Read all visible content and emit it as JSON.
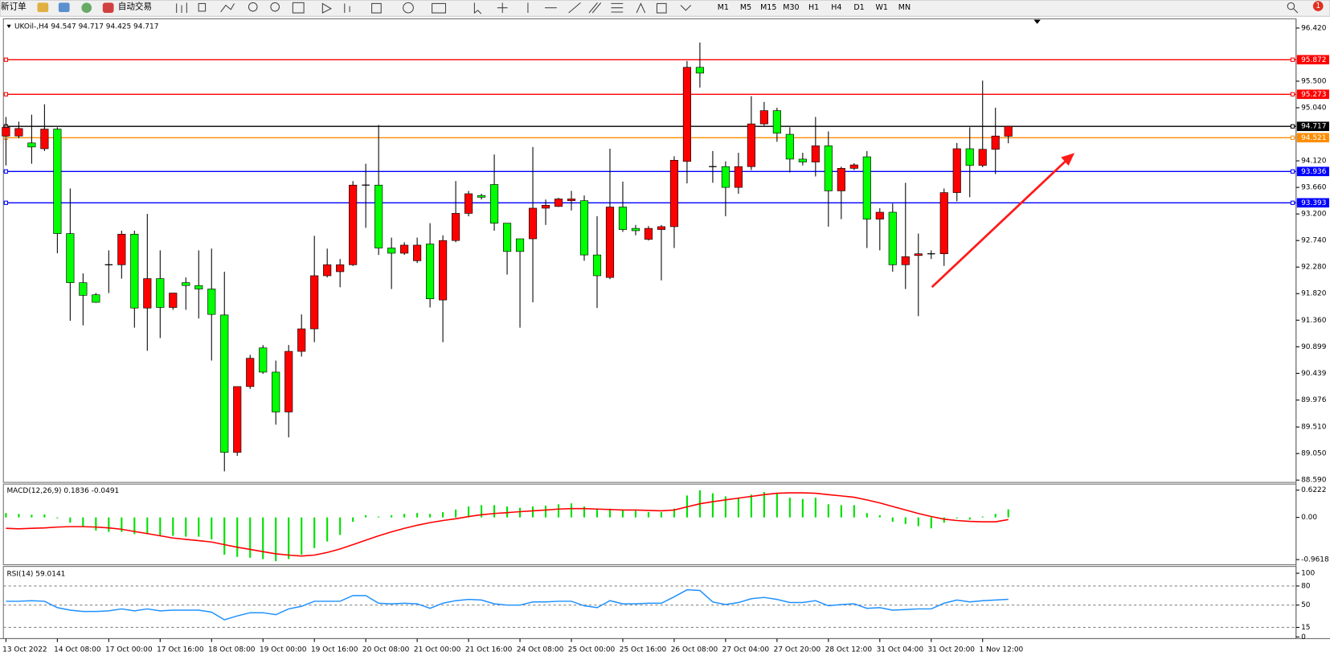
{
  "toolbar": {
    "new_order": "新订单",
    "auto_trading": "自动交易",
    "timeframes": [
      "M1",
      "M5",
      "M15",
      "M30",
      "H1",
      "H4",
      "D1",
      "W1",
      "MN"
    ],
    "badge": "1"
  },
  "chart_data": [
    {
      "type": "candlestick",
      "title": "UKOil-,H4  94.547 94.717 94.425 94.717",
      "categories": [
        "13 Oct 2022",
        null,
        null,
        null,
        "14 Oct 08:00",
        null,
        null,
        null,
        "17 Oct 00:00",
        null,
        null,
        null,
        "17 Oct 16:00",
        null,
        null,
        null,
        "18 Oct 08:00",
        null,
        null,
        null,
        "19 Oct 00:00",
        null,
        null,
        null,
        "19 Oct 16:00",
        null,
        null,
        null,
        "20 Oct 08:00",
        null,
        null,
        null,
        "21 Oct 00:00",
        null,
        null,
        null,
        "21 Oct 16:00",
        null,
        null,
        null,
        "24 Oct 08:00",
        null,
        null,
        null,
        "25 Oct 00:00",
        null,
        null,
        null,
        "25 Oct 16:00",
        null,
        null,
        null,
        "26 Oct 08:00",
        null,
        null,
        null,
        "27 Oct 04:00",
        null,
        null,
        null,
        "27 Oct 20:00",
        null,
        null,
        null,
        "28 Oct 12:00",
        null,
        null,
        null,
        "31 Oct 04:00",
        null,
        null,
        null,
        "31 Oct 20:00",
        null,
        null,
        null,
        "1 Nov 12:00",
        null,
        null
      ],
      "open": [
        94.55,
        94.55,
        94.43,
        94.33,
        94.67,
        92.86,
        92.01,
        91.8,
        92.32,
        92.32,
        92.85,
        91.57,
        92.08,
        91.58,
        92.01,
        91.96,
        91.9,
        91.45,
        89.07,
        90.21,
        90.88,
        90.46,
        89.77,
        90.82,
        91.21,
        92.13,
        92.2,
        92.32,
        93.7,
        93.7,
        92.61,
        92.52,
        92.39,
        92.68,
        91.71,
        92.74,
        93.21,
        93.52,
        93.71,
        93.04,
        92.77,
        92.77,
        93.3,
        93.33,
        93.43,
        93.43,
        92.49,
        92.1,
        93.32,
        92.95,
        92.76,
        92.93,
        92.98,
        94.11,
        95.74,
        94.02,
        94.02,
        93.66,
        94.02,
        94.76,
        94.99,
        94.58,
        94.15,
        94.1,
        94.38,
        93.6,
        93.99,
        94.19,
        93.11,
        93.23,
        92.32,
        92.48,
        92.51,
        92.51,
        93.57,
        94.33,
        94.04,
        94.32,
        94.547
      ],
      "high": [
        94.88,
        94.8,
        94.92,
        95.1,
        94.7,
        93.64,
        92.17,
        91.83,
        92.57,
        92.91,
        92.91,
        93.2,
        92.57,
        91.83,
        92.1,
        92.57,
        92.6,
        92.2,
        90.21,
        90.76,
        90.93,
        90.66,
        90.93,
        91.46,
        92.82,
        92.6,
        92.42,
        93.77,
        94.07,
        94.74,
        92.79,
        92.71,
        92.79,
        93.04,
        92.83,
        93.77,
        93.6,
        93.55,
        94.23,
        93.04,
        92.77,
        94.36,
        93.45,
        93.48,
        93.6,
        93.52,
        93.16,
        94.33,
        93.76,
        93.01,
        92.99,
        93.01,
        94.2,
        95.85,
        96.17,
        94.29,
        94.11,
        94.26,
        95.24,
        95.14,
        95.04,
        94.7,
        94.26,
        94.88,
        94.63,
        94.02,
        94.08,
        94.29,
        93.3,
        93.38,
        93.74,
        92.86,
        92.57,
        93.64,
        94.43,
        94.7,
        95.51,
        95.04,
        94.717
      ],
      "low": [
        94.04,
        94.51,
        94.07,
        94.29,
        92.52,
        91.35,
        91.27,
        91.66,
        91.83,
        92.08,
        91.23,
        90.83,
        91.05,
        91.54,
        91.54,
        91.39,
        90.66,
        88.74,
        89.01,
        90.17,
        90.43,
        89.55,
        89.33,
        90.73,
        90.98,
        92.1,
        91.93,
        92.3,
        92.96,
        92.49,
        91.9,
        92.49,
        92.35,
        91.58,
        90.98,
        92.71,
        93.16,
        93.45,
        92.91,
        92.15,
        91.23,
        91.67,
        93.01,
        93.32,
        93.26,
        92.39,
        91.57,
        92.07,
        92.89,
        92.83,
        92.74,
        92.05,
        92.61,
        93.73,
        95.39,
        93.74,
        93.16,
        93.55,
        93.96,
        94.73,
        94.45,
        93.92,
        94.04,
        93.85,
        92.98,
        93.11,
        93.96,
        92.61,
        92.57,
        92.2,
        91.9,
        91.43,
        92.42,
        92.3,
        93.42,
        93.49,
        94.01,
        93.89,
        94.425
      ],
      "close": [
        94.7,
        94.68,
        94.36,
        94.67,
        92.86,
        92.01,
        91.79,
        91.67,
        92.32,
        92.85,
        91.57,
        92.08,
        91.58,
        91.83,
        91.96,
        91.9,
        91.46,
        89.07,
        90.21,
        90.7,
        90.46,
        89.77,
        90.82,
        91.21,
        92.13,
        92.32,
        92.32,
        93.7,
        93.7,
        92.61,
        92.52,
        92.66,
        92.66,
        91.73,
        92.74,
        93.21,
        93.55,
        93.49,
        93.04,
        92.55,
        92.55,
        93.3,
        93.35,
        93.46,
        93.46,
        92.49,
        92.13,
        93.32,
        92.93,
        92.91,
        92.95,
        92.98,
        94.13,
        95.74,
        95.64,
        94.02,
        93.66,
        94.02,
        94.76,
        94.99,
        94.6,
        94.15,
        94.1,
        94.38,
        93.6,
        93.99,
        94.05,
        93.11,
        93.23,
        92.32,
        92.46,
        92.51,
        92.51,
        93.57,
        94.33,
        94.04,
        94.32,
        94.55,
        94.717
      ],
      "up_color": "#ff0000",
      "down_color": "#00ff00",
      "ylim": [
        88.55,
        96.58
      ],
      "yticks": [
        {
          "value": 96.42,
          "label": "96.420"
        },
        {
          "value": 95.5,
          "label": "95.500"
        },
        {
          "value": 95.04,
          "label": "95.040"
        },
        {
          "value": 94.12,
          "label": "94.120"
        },
        {
          "value": 93.66,
          "label": "93.660"
        },
        {
          "value": 93.2,
          "label": "93.200"
        },
        {
          "value": 92.74,
          "label": "92.740"
        },
        {
          "value": 92.28,
          "label": "92.280"
        },
        {
          "value": 91.82,
          "label": "91.820"
        },
        {
          "value": 91.36,
          "label": "91.360"
        },
        90.899,
        90.439,
        89.976,
        {
          "value": 89.51,
          "label": "89.510"
        },
        {
          "value": 89.05,
          "label": "89.050"
        },
        {
          "value": 88.59,
          "label": "88.590"
        }
      ],
      "levels": [
        {
          "value": 95.872,
          "color": "#ff0000"
        },
        {
          "value": 95.273,
          "color": "#ff0000"
        },
        {
          "value": 94.717,
          "color": "#000000"
        },
        {
          "value": 94.521,
          "color": "#ff8c00"
        },
        {
          "value": 93.936,
          "color": "#0000ff"
        },
        {
          "value": 93.393,
          "color": "#0000ff"
        }
      ]
    },
    {
      "type": "macd",
      "title": "MACD(12,26,9) 0.1836 -0.0491",
      "series": [
        {
          "style": "bar",
          "color": "#00e000",
          "values": [
            0.1,
            0.08,
            0.06,
            0.07,
            -0.02,
            -0.12,
            -0.22,
            -0.3,
            -0.33,
            -0.33,
            -0.38,
            -0.38,
            -0.42,
            -0.42,
            -0.44,
            -0.44,
            -0.5,
            -0.85,
            -0.9,
            -0.92,
            -0.95,
            -1.0,
            -0.95,
            -0.85,
            -0.7,
            -0.55,
            -0.4,
            -0.1,
            0.05,
            0.02,
            0.05,
            0.08,
            0.1,
            0.08,
            0.12,
            0.18,
            0.25,
            0.28,
            0.28,
            0.25,
            0.22,
            0.25,
            0.27,
            0.3,
            0.32,
            0.25,
            0.18,
            0.2,
            0.18,
            0.15,
            0.12,
            0.12,
            0.2,
            0.5,
            0.62,
            0.55,
            0.48,
            0.45,
            0.52,
            0.58,
            0.55,
            0.45,
            0.42,
            0.45,
            0.3,
            0.28,
            0.28,
            0.1,
            0.05,
            -0.1,
            -0.15,
            -0.2,
            -0.25,
            -0.12,
            -0.02,
            -0.05,
            0.02,
            0.08,
            0.1836
          ]
        },
        {
          "style": "line",
          "color": "#ff0000",
          "values": [
            -0.25,
            -0.26,
            -0.25,
            -0.24,
            -0.22,
            -0.21,
            -0.21,
            -0.22,
            -0.24,
            -0.27,
            -0.32,
            -0.37,
            -0.42,
            -0.47,
            -0.5,
            -0.53,
            -0.56,
            -0.62,
            -0.68,
            -0.73,
            -0.78,
            -0.83,
            -0.86,
            -0.88,
            -0.86,
            -0.8,
            -0.72,
            -0.62,
            -0.52,
            -0.42,
            -0.33,
            -0.25,
            -0.18,
            -0.12,
            -0.07,
            -0.03,
            0.02,
            0.06,
            0.09,
            0.11,
            0.13,
            0.15,
            0.17,
            0.19,
            0.2,
            0.2,
            0.19,
            0.18,
            0.17,
            0.17,
            0.16,
            0.15,
            0.17,
            0.24,
            0.31,
            0.36,
            0.4,
            0.44,
            0.48,
            0.52,
            0.55,
            0.56,
            0.56,
            0.55,
            0.52,
            0.49,
            0.46,
            0.4,
            0.33,
            0.25,
            0.17,
            0.09,
            0.02,
            -0.04,
            -0.07,
            -0.09,
            -0.1,
            -0.1,
            -0.0491
          ]
        }
      ],
      "ylim": [
        -1.08,
        0.76
      ],
      "yticks": [
        0.6222,
        {
          "value": 0,
          "label": "0.00"
        },
        -0.9618
      ]
    },
    {
      "type": "line",
      "title": "RSI(14) 59.0141",
      "color": "#1e90ff",
      "values": [
        56,
        56,
        57,
        56,
        46,
        42,
        40,
        40,
        41,
        44,
        41,
        44,
        41,
        42,
        42,
        42,
        39,
        27,
        33,
        38,
        38,
        35,
        44,
        48,
        56,
        56,
        56,
        65,
        65,
        53,
        52,
        53,
        52,
        45,
        53,
        57,
        59,
        58,
        52,
        50,
        50,
        55,
        55,
        56,
        56,
        49,
        46,
        57,
        52,
        52,
        53,
        53,
        63,
        74,
        73,
        55,
        51,
        54,
        60,
        62,
        59,
        54,
        54,
        57,
        49,
        51,
        52,
        45,
        46,
        42,
        43,
        44,
        44,
        53,
        58,
        55,
        57,
        58,
        59.0141
      ],
      "ylim": [
        0,
        100
      ],
      "yticks": [
        100,
        80,
        50,
        15,
        0
      ],
      "grid": "dashed"
    }
  ]
}
